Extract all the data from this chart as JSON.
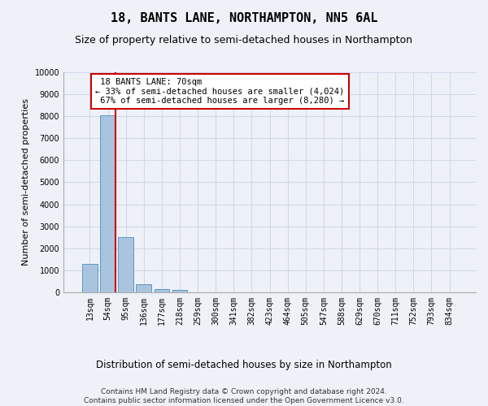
{
  "title": "18, BANTS LANE, NORTHAMPTON, NN5 6AL",
  "subtitle": "Size of property relative to semi-detached houses in Northampton",
  "xlabel": "Distribution of semi-detached houses by size in Northampton",
  "ylabel": "Number of semi-detached properties",
  "footer_line1": "Contains HM Land Registry data © Crown copyright and database right 2024.",
  "footer_line2": "Contains public sector information licensed under the Open Government Licence v3.0.",
  "categories": [
    "13sqm",
    "54sqm",
    "95sqm",
    "136sqm",
    "177sqm",
    "218sqm",
    "259sqm",
    "300sqm",
    "341sqm",
    "382sqm",
    "423sqm",
    "464sqm",
    "505sqm",
    "547sqm",
    "588sqm",
    "629sqm",
    "670sqm",
    "711sqm",
    "752sqm",
    "793sqm",
    "834sqm"
  ],
  "values": [
    1300,
    8050,
    2500,
    370,
    150,
    110,
    0,
    0,
    0,
    0,
    0,
    0,
    0,
    0,
    0,
    0,
    0,
    0,
    0,
    0,
    0
  ],
  "bar_color": "#aac4e0",
  "bar_edge_color": "#5a9abf",
  "grid_color": "#d0d8e8",
  "background_color": "#eef2f8",
  "annotation_box_color": "#ffffff",
  "annotation_border_color": "#cc0000",
  "property_line_color": "#cc0000",
  "property_label": "18 BANTS LANE: 70sqm",
  "smaller_pct": "33%",
  "smaller_count": "4,024",
  "larger_pct": "67%",
  "larger_count": "8,280",
  "ylim": [
    0,
    10000
  ],
  "yticks": [
    0,
    1000,
    2000,
    3000,
    4000,
    5000,
    6000,
    7000,
    8000,
    9000,
    10000
  ],
  "title_fontsize": 11,
  "subtitle_fontsize": 9,
  "tick_fontsize": 7,
  "ylabel_fontsize": 8,
  "xlabel_fontsize": 8.5,
  "annotation_fontsize": 7.5,
  "footer_fontsize": 6.5
}
